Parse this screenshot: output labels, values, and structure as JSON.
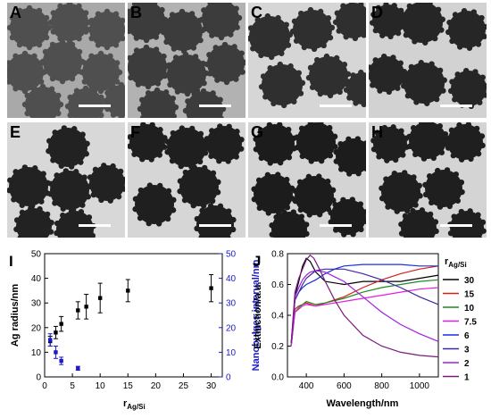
{
  "micrographs": [
    {
      "label": "A",
      "background": "#a9a9a9",
      "particle": "#4f4f4f"
    },
    {
      "label": "B",
      "background": "#b2b2b2",
      "particle": "#3c3c3c"
    },
    {
      "label": "C",
      "background": "#d6d6d6",
      "particle": "#2f2f2f"
    },
    {
      "label": "D",
      "background": "#d2d2d2",
      "particle": "#262626"
    },
    {
      "label": "E",
      "background": "#d8d8d8",
      "particle": "#222222"
    },
    {
      "label": "F",
      "background": "#d6d6d6",
      "particle": "#1f1f1f"
    },
    {
      "label": "G",
      "background": "#d4d4d4",
      "particle": "#1c1c1c"
    },
    {
      "label": "H",
      "background": "#d4d4d4",
      "particle": "#1f1f1f"
    }
  ],
  "chart_data": [
    {
      "panel_label": "I",
      "type": "scatter",
      "xlabel_main": "r",
      "xlabel_sub": "Ag/Si",
      "ylabel": "Ag radius/nm",
      "ylabel_right": "Nanobulges interval/nm",
      "xlim": [
        0,
        32
      ],
      "ylim": [
        0,
        50
      ],
      "x_ticks": [
        "0",
        "5",
        "10",
        "15",
        "20",
        "25",
        "30"
      ],
      "y_ticks": [
        "0",
        "10",
        "20",
        "30",
        "40",
        "50"
      ],
      "y_ticks_right": [
        "0",
        "10",
        "20",
        "30",
        "40",
        "50"
      ],
      "right_color": "#1a1acc",
      "series": [
        {
          "color": "#000000",
          "x": [
            1,
            2,
            3,
            6,
            7.5,
            10,
            15,
            30
          ],
          "y": [
            14.5,
            18,
            21.5,
            27,
            28.5,
            32,
            35,
            36
          ],
          "err": [
            2,
            2.5,
            3,
            3.5,
            5,
            6,
            4.5,
            5.5
          ]
        },
        {
          "color": "#1a1acc",
          "x": [
            1,
            2,
            3,
            6
          ],
          "y": [
            15,
            10,
            6.5,
            3.5
          ],
          "err": [
            2.5,
            2.5,
            1.5,
            0.8
          ]
        }
      ]
    },
    {
      "panel_label": "J",
      "type": "line",
      "xlabel": "Wavelength/nm",
      "ylabel": "Extinction/a.u.",
      "xlim": [
        300,
        1100
      ],
      "ylim": [
        0.0,
        0.8
      ],
      "x_ticks": [
        "400",
        "600",
        "800",
        "1000"
      ],
      "y_ticks": [
        "0.0",
        "0.2",
        "0.4",
        "0.6",
        "0.8"
      ],
      "legend_title_main": "r",
      "legend_title_sub": "Ag/Si",
      "legend_position": "right",
      "series": [
        {
          "name": "30",
          "color": "#000000",
          "x": [
            320,
            340,
            360,
            380,
            400,
            420,
            450,
            500,
            600,
            700,
            800,
            900,
            1000,
            1100
          ],
          "y": [
            0.2,
            0.52,
            0.62,
            0.72,
            0.77,
            0.75,
            0.68,
            0.62,
            0.6,
            0.62,
            0.62,
            0.62,
            0.64,
            0.66
          ]
        },
        {
          "name": "15",
          "color": "#d22020",
          "x": [
            320,
            340,
            360,
            380,
            400,
            450,
            500,
            600,
            700,
            800,
            900,
            1000,
            1100
          ],
          "y": [
            0.2,
            0.44,
            0.46,
            0.47,
            0.48,
            0.46,
            0.48,
            0.52,
            0.58,
            0.63,
            0.67,
            0.7,
            0.72
          ]
        },
        {
          "name": "10",
          "color": "#1c8a1c",
          "x": [
            320,
            340,
            360,
            380,
            400,
            450,
            500,
            600,
            700,
            800,
            900,
            1000,
            1100
          ],
          "y": [
            0.2,
            0.42,
            0.45,
            0.47,
            0.49,
            0.47,
            0.48,
            0.51,
            0.55,
            0.58,
            0.6,
            0.62,
            0.63
          ]
        },
        {
          "name": "7.5",
          "color": "#e020e0",
          "x": [
            320,
            340,
            360,
            380,
            400,
            450,
            500,
            600,
            700,
            800,
            900,
            1000,
            1100
          ],
          "y": [
            0.2,
            0.42,
            0.44,
            0.46,
            0.47,
            0.46,
            0.47,
            0.49,
            0.51,
            0.53,
            0.55,
            0.57,
            0.58
          ]
        },
        {
          "name": "6",
          "color": "#1a2ee0",
          "x": [
            320,
            340,
            360,
            380,
            400,
            450,
            500,
            550,
            600,
            700,
            800,
            900,
            1000,
            1100
          ],
          "y": [
            0.22,
            0.5,
            0.55,
            0.58,
            0.6,
            0.63,
            0.67,
            0.7,
            0.72,
            0.73,
            0.73,
            0.73,
            0.72,
            0.72
          ]
        },
        {
          "name": "3",
          "color": "#3a2aa0",
          "x": [
            320,
            340,
            360,
            380,
            400,
            420,
            450,
            500,
            600,
            700,
            800,
            900,
            1000,
            1100
          ],
          "y": [
            0.22,
            0.5,
            0.55,
            0.6,
            0.64,
            0.66,
            0.69,
            0.7,
            0.7,
            0.67,
            0.63,
            0.58,
            0.52,
            0.47
          ]
        },
        {
          "name": "2",
          "color": "#a020e0",
          "x": [
            320,
            340,
            360,
            380,
            400,
            420,
            450,
            500,
            600,
            700,
            800,
            900,
            1000,
            1100
          ],
          "y": [
            0.22,
            0.52,
            0.58,
            0.63,
            0.66,
            0.68,
            0.69,
            0.68,
            0.62,
            0.52,
            0.42,
            0.34,
            0.28,
            0.23
          ]
        },
        {
          "name": "1",
          "color": "#7a1a7a",
          "x": [
            320,
            340,
            360,
            380,
            400,
            420,
            440,
            470,
            500,
            550,
            600,
            700,
            800,
            900,
            1000,
            1100
          ],
          "y": [
            0.22,
            0.55,
            0.64,
            0.7,
            0.76,
            0.79,
            0.77,
            0.7,
            0.62,
            0.5,
            0.4,
            0.27,
            0.2,
            0.16,
            0.14,
            0.13
          ]
        }
      ]
    }
  ]
}
